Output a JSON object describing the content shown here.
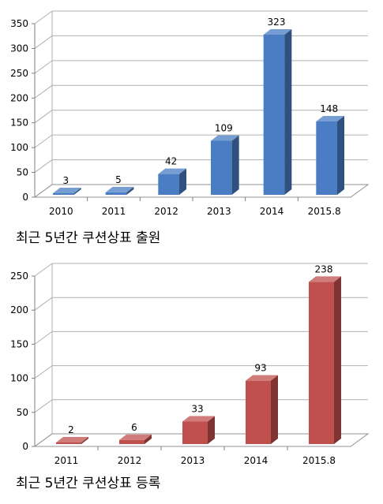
{
  "chart_data": [
    {
      "type": "bar",
      "categories": [
        "2010",
        "2011",
        "2012",
        "2013",
        "2014",
        "2015.8"
      ],
      "values": [
        3,
        5,
        42,
        109,
        323,
        148
      ],
      "data_labels": [
        "3",
        "5",
        "42",
        "109",
        "323",
        "148"
      ],
      "yticks": [
        "0",
        "50",
        "100",
        "150",
        "200",
        "250",
        "300",
        "350"
      ],
      "ylim": [
        0,
        350
      ],
      "grid": true,
      "color": "#4a7dc3",
      "caption": "최근 5년간 쿠션상표 출원"
    },
    {
      "type": "bar",
      "categories": [
        "2011",
        "2012",
        "2013",
        "2014",
        "2015.8"
      ],
      "values": [
        2,
        6,
        33,
        93,
        238
      ],
      "data_labels": [
        "2",
        "6",
        "33",
        "93",
        "238"
      ],
      "yticks": [
        "0",
        "50",
        "100",
        "150",
        "200",
        "250"
      ],
      "ylim": [
        0,
        250
      ],
      "grid": true,
      "color": "#c0504d",
      "caption": "최근 5년간 쿠션상표 등록"
    }
  ]
}
